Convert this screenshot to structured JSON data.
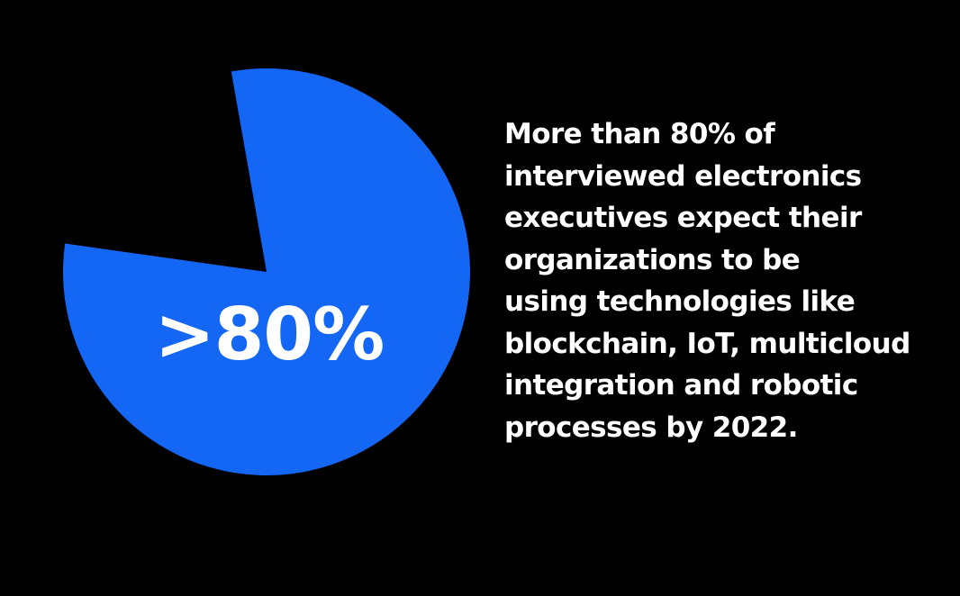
{
  "colors": {
    "background": "#000000",
    "slice": "#1466f5",
    "text": "#ffffff"
  },
  "chart_data": {
    "type": "pie",
    "values": [
      80,
      20
    ],
    "shown_slices": [
      true,
      false
    ],
    "start_angle_deg": -10,
    "data_label": ">80%"
  },
  "description": {
    "lines": [
      "More than 80% of",
      "interviewed electronics",
      "executives expect their",
      "organizations to be",
      "using technologies like",
      "blockchain, IoT, multicloud",
      "integration and robotic",
      "processes by 2022."
    ]
  }
}
